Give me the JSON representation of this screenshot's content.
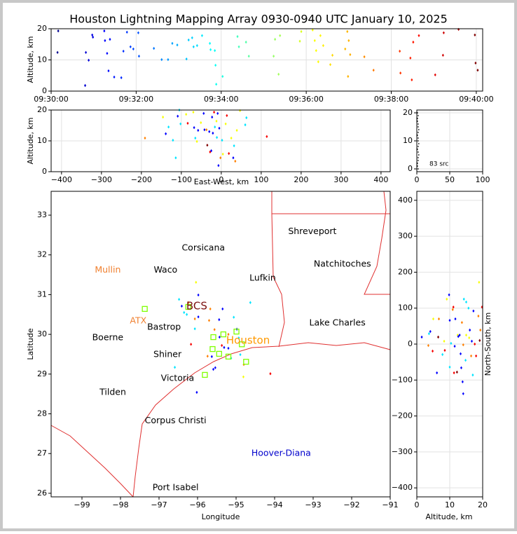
{
  "chart_data": [
    {
      "type": "scatter",
      "title": "Houston Lightning Mapping Array 0930-0940 UTC January 10, 2025",
      "ylabel": "Altitude, km",
      "xlim": [
        "09:30:00",
        "09:40:09"
      ],
      "xticks": [
        "09:30:00",
        "09:32:00",
        "09:34:00",
        "09:36:00",
        "09:38:00",
        "09:40:00"
      ],
      "ylim": [
        0,
        20
      ],
      "yticks": [
        0,
        10,
        20
      ],
      "grid": true,
      "colormap": "jet",
      "clim": [
        "09:30:00",
        "09:40:00"
      ],
      "x": [
        "09:30:10",
        "09:30:09",
        "09:30:48",
        "09:30:49",
        "09:30:53",
        "09:30:58",
        "09:30:59",
        "09:31:15",
        "09:31:16",
        "09:31:19",
        "09:31:21",
        "09:31:23",
        "09:31:29",
        "09:31:39",
        "09:31:42",
        "09:31:47",
        "09:31:52",
        "09:31:56",
        "09:32:03",
        "09:32:04",
        "09:32:25",
        "09:32:36",
        "09:32:45",
        "09:32:51",
        "09:32:58",
        "09:33:11",
        "09:33:14",
        "09:33:19",
        "09:33:21",
        "09:33:26",
        "09:33:33",
        "09:33:44",
        "09:33:45",
        "09:33:51",
        "09:33:52",
        "09:33:53",
        "09:34:02",
        "09:34:23",
        "09:34:25",
        "09:34:35",
        "09:34:39",
        "09:35:14",
        "09:35:16",
        "09:35:21",
        "09:35:23",
        "09:35:51",
        "09:35:53",
        "09:36:09",
        "09:36:12",
        "09:36:14",
        "09:36:17",
        "09:36:20",
        "09:36:24",
        "09:36:34",
        "09:36:37",
        "09:36:55",
        "09:36:58",
        "09:36:59",
        "09:37:00",
        "09:37:02",
        "09:37:22",
        "09:37:35",
        "09:38:12",
        "09:38:13",
        "09:38:27",
        "09:38:29",
        "09:38:31",
        "09:38:39",
        "09:39:02",
        "09:39:13",
        "09:39:14",
        "09:39:35",
        "09:39:58",
        "09:39:59",
        "09:40:02"
      ],
      "y": [
        19.3,
        12.4,
        1.8,
        12.4,
        9.9,
        18,
        17.3,
        19.3,
        16.2,
        12.1,
        6.5,
        16.6,
        4.5,
        4.3,
        12.8,
        18.9,
        14.2,
        13.5,
        18.7,
        11.2,
        13.7,
        10.1,
        10.1,
        15.3,
        14.8,
        10.3,
        16.4,
        17.1,
        14.2,
        14.6,
        17.8,
        15.3,
        13.3,
        13.0,
        8.3,
        2.2,
        4.7,
        17.5,
        14.2,
        15.7,
        11.2,
        11.2,
        16.6,
        5.4,
        17.8,
        16.0,
        19.1,
        19.6,
        16.2,
        13.0,
        9.4,
        17.8,
        14.6,
        8.5,
        11.5,
        13.5,
        19.1,
        4.7,
        16.2,
        11.7,
        11.0,
        6.7,
        12.8,
        5.8,
        10.6,
        3.6,
        15.7,
        17.8,
        5.2,
        11.5,
        18.7,
        19.8,
        18.0,
        9.0,
        6.7
      ]
    },
    {
      "type": "scatter",
      "xlabel": "East-West, km",
      "ylabel": "Altitude, km",
      "xlim": [
        -426,
        423
      ],
      "xticks": [
        {
          "value": -400,
          "label": "−400"
        },
        {
          "value": -300,
          "label": "−300"
        },
        {
          "value": -200,
          "label": "−200"
        },
        {
          "value": -100,
          "label": "−100"
        },
        0,
        100,
        200,
        300,
        400
      ],
      "ylim": [
        0,
        20
      ],
      "yticks": [
        0,
        10,
        20
      ],
      "grid": true,
      "colormap": "jet",
      "clim": [
        "09:30:00",
        "09:40:00"
      ],
      "x": [
        -191,
        -146,
        -139,
        -132,
        -121,
        -114,
        -109,
        -105,
        -102,
        -88,
        -84,
        -70,
        -68,
        -65,
        -61,
        -58,
        -51,
        -44,
        -42,
        -37,
        -35,
        -30,
        -28,
        -25,
        -23,
        -21,
        -18,
        -16,
        -12,
        -11,
        -9,
        -7,
        -5,
        -2,
        2,
        4,
        11,
        14,
        19,
        25,
        30,
        32,
        35,
        39,
        47,
        60,
        63,
        114
      ],
      "y": [
        10.9,
        17.7,
        12.3,
        14.5,
        10.2,
        4.5,
        18,
        20,
        15.5,
        18.6,
        15.7,
        19.3,
        14.3,
        10.9,
        9.8,
        13.4,
        15.9,
        18.9,
        13.6,
        13.6,
        8.6,
        13,
        6.4,
        6.8,
        17.7,
        12.5,
        19.3,
        14.5,
        16.4,
        11.1,
        18.9,
        2,
        14.1,
        4.5,
        10.2,
        5.7,
        15.5,
        18.2,
        5.9,
        10.9,
        4.5,
        8.4,
        3.4,
        13.4,
        19.8,
        15.2,
        17.5,
        11.4
      ],
      "c": [
        "09:37:30",
        "09:36:10",
        "09:31:15",
        "09:33:30",
        "09:33:30",
        "09:33:30",
        "09:31:15",
        "09:33:30",
        "09:33:30",
        "09:36:10",
        "09:38:50",
        "09:36:10",
        "09:31:15",
        "09:33:30",
        "09:36:10",
        "09:31:15",
        "09:36:10",
        "09:31:15",
        "09:31:15",
        "09:37:30",
        "09:40:00",
        "09:31:15",
        "09:38:50",
        "09:31:15",
        "09:31:15",
        "09:31:15",
        "09:38:50",
        "09:33:30",
        "09:36:10",
        "09:33:30",
        "09:31:15",
        "09:31:15",
        "09:31:15",
        "09:37:30",
        "09:33:30",
        "09:36:10",
        "09:36:10",
        "09:38:50",
        "09:38:50",
        "09:36:10",
        "09:31:15",
        "09:33:30",
        "09:37:30",
        "09:36:10",
        "09:36:10",
        "09:33:30",
        "09:33:30",
        "09:38:50"
      ]
    },
    {
      "type": "scatter",
      "annotation": "83 src",
      "xlim": [
        0,
        100
      ],
      "xticks": [
        0,
        50,
        100
      ],
      "ylim": [
        -1,
        21
      ],
      "yticks": [
        0,
        10,
        20
      ],
      "grid": true,
      "color": "#000000",
      "x": [
        2,
        1,
        1,
        2,
        2,
        3,
        2,
        1,
        2,
        3,
        2,
        2,
        1,
        2,
        3,
        2,
        2,
        1,
        1,
        2,
        1
      ],
      "y": [
        0,
        1,
        2,
        3,
        4,
        5,
        6,
        7,
        8,
        9,
        10,
        11,
        12,
        13,
        14,
        15,
        16,
        17,
        18,
        19,
        20
      ]
    },
    {
      "type": "map",
      "xlabel": "Longitude",
      "ylabel": "Latitude",
      "xlim": [
        -99.8,
        -91.0
      ],
      "xticks": [
        {
          "value": -99,
          "label": "−99"
        },
        {
          "value": -98,
          "label": "−98"
        },
        {
          "value": -97,
          "label": "−97"
        },
        {
          "value": -96,
          "label": "−96"
        },
        {
          "value": -95,
          "label": "−95"
        },
        {
          "value": -94,
          "label": "−94"
        },
        {
          "value": -93,
          "label": "−93"
        },
        {
          "value": -92,
          "label": "−92"
        },
        {
          "value": -91,
          "label": "−91"
        }
      ],
      "ylim": [
        25.91,
        33.6
      ],
      "yticks": [
        26,
        27,
        28,
        29,
        30,
        31,
        32,
        33
      ],
      "grid": false,
      "colormap": "jet",
      "clim": [
        "09:30:00",
        "09:40:00"
      ],
      "x": [
        -96.04,
        -95.98,
        -96.48,
        -96.24,
        -96.41,
        -96.35,
        -96.28,
        -96.07,
        -95.98,
        -95.7,
        -95.67,
        -95.35,
        -95.56,
        -95.44,
        -95.43,
        -95.37,
        -95.31,
        -95.2,
        -95.2,
        -95.06,
        -94.98,
        -94.93,
        -94.89,
        -94.81,
        -94.8,
        -94.63,
        -94.11,
        -95.63,
        -95.59,
        -95.54,
        -95.74,
        -96.17,
        -96.59,
        -96.02,
        -96.07,
        -95.13
      ],
      "y": [
        31.31,
        30.99,
        30.88,
        30.8,
        30.71,
        30.55,
        30.5,
        30.14,
        30.44,
        30.35,
        30.64,
        30.64,
        30.12,
        30.37,
        29.93,
        29.72,
        29.67,
        30.0,
        29.65,
        30.43,
        30.13,
        29.91,
        29.49,
        28.93,
        29.24,
        30.8,
        29.01,
        29.44,
        29.12,
        29.16,
        29.45,
        29.75,
        29.17,
        28.54,
        30.39,
        29.4
      ],
      "c": [
        "09:36:10",
        "09:31:15",
        "09:33:30",
        "09:37:30",
        "09:31:15",
        "09:33:30",
        "09:33:30",
        "09:33:30",
        "09:31:15",
        "09:37:30",
        "09:37:30",
        "09:31:15",
        "09:37:30",
        "09:31:15",
        "09:31:15",
        "09:38:50",
        "09:31:15",
        "09:37:30",
        "09:31:15",
        "09:33:30",
        "09:31:15",
        "09:33:30",
        "09:33:30",
        "09:36:10",
        "09:37:30",
        "09:33:30",
        "09:38:50",
        "09:31:15",
        "09:31:15",
        "09:31:15",
        "09:37:30",
        "09:38:50",
        "09:33:30",
        "09:31:15",
        "09:37:30",
        "09:33:30"
      ],
      "stations": {
        "color": "#7fff00",
        "x": [
          -97.37,
          -96.24,
          -95.33,
          -95.59,
          -94.99,
          -95.61,
          -95.44,
          -95.2,
          -95.81,
          -94.74,
          -94.85
        ],
        "y": [
          30.64,
          30.69,
          30.0,
          29.93,
          30.07,
          29.63,
          29.51,
          29.44,
          28.98,
          29.31,
          29.75
        ]
      },
      "cities": [
        {
          "name": "Shreveport",
          "lon": -93.02,
          "lat": 32.59,
          "color": "#000000"
        },
        {
          "name": "Corsicana",
          "lon": -95.85,
          "lat": 32.17,
          "color": "#000000"
        },
        {
          "name": "Mullin",
          "lon": -98.33,
          "lat": 31.62,
          "color": "#f08030"
        },
        {
          "name": "Waco",
          "lon": -96.83,
          "lat": 31.62,
          "color": "#000000"
        },
        {
          "name": "Lufkin",
          "lon": -94.31,
          "lat": 31.41,
          "color": "#000000"
        },
        {
          "name": "Natchitoches",
          "lon": -92.24,
          "lat": 31.77,
          "color": "#000000"
        },
        {
          "name": "BCS",
          "lon": -96.02,
          "lat": 30.71,
          "color": "#7b1010"
        },
        {
          "name": "ATX",
          "lon": -97.54,
          "lat": 30.34,
          "color": "#f08030"
        },
        {
          "name": "Bastrop",
          "lon": -96.87,
          "lat": 30.18,
          "color": "#000000"
        },
        {
          "name": "Lake Charles",
          "lon": -92.37,
          "lat": 30.28,
          "color": "#000000"
        },
        {
          "name": "Boerne",
          "lon": -98.33,
          "lat": 29.91,
          "color": "#000000"
        },
        {
          "name": "Houston",
          "lon": -94.69,
          "lat": 29.84,
          "color": "#ff9900"
        },
        {
          "name": "Shiner",
          "lon": -96.78,
          "lat": 29.49,
          "color": "#000000"
        },
        {
          "name": "Victoria",
          "lon": -96.52,
          "lat": 28.89,
          "color": "#000000"
        },
        {
          "name": "Tilden",
          "lon": -98.2,
          "lat": 28.54,
          "color": "#000000"
        },
        {
          "name": "Corpus Christi",
          "lon": -96.57,
          "lat": 27.82,
          "color": "#000000"
        },
        {
          "name": "Hoover-Diana",
          "lon": -93.83,
          "lat": 27.0,
          "color": "#0000cc"
        },
        {
          "name": "Port Isabel",
          "lon": -96.57,
          "lat": 26.14,
          "color": "#000000"
        }
      ]
    },
    {
      "type": "scatter",
      "xlabel": "Altitude, km",
      "ylabel": "North-South, km",
      "xlim": [
        0,
        20
      ],
      "xticks": [
        0,
        10,
        20
      ],
      "ylim": [
        -425,
        425
      ],
      "yticks": [
        {
          "value": -400,
          "label": "−400"
        },
        {
          "value": -300,
          "label": "−300"
        },
        {
          "value": -200,
          "label": "−200"
        },
        {
          "value": -100,
          "label": "−100"
        },
        0,
        100,
        200,
        300,
        400
      ],
      "grid": true,
      "colormap": "jet",
      "clim": [
        "09:30:00",
        "09:40:00"
      ],
      "x": [
        1.5,
        3.5,
        3.7,
        4.1,
        4.8,
        5,
        6.1,
        6.5,
        6.7,
        7.8,
        8.3,
        8.5,
        9.1,
        9.8,
        10,
        10,
        10.4,
        10.9,
        11.1,
        11.3,
        11.5,
        11.7,
        12.2,
        12.4,
        12.6,
        13,
        13.3,
        13.5,
        13.7,
        13.9,
        14.1,
        14.1,
        14.3,
        14.8,
        15,
        15,
        15.7,
        15.9,
        16.1,
        16.5,
        16.7,
        17,
        17.2,
        17.6,
        18,
        18.7,
        18.9,
        19.1,
        19.3,
        19.8
      ],
      "y": [
        19.5,
        -4,
        29,
        35,
        -19.5,
        70,
        -80,
        19.5,
        70,
        -29,
        8,
        -17.5,
        125,
        137,
        66,
        -64,
        2,
        96,
        103,
        -80,
        -6,
        70,
        -78,
        25,
        21,
        25,
        -27,
        -66,
        60,
        -105,
        -138,
        -2,
        125,
        -45,
        117,
        25,
        100,
        17.5,
        39,
        -33,
        8,
        -86,
        92,
        0,
        -33,
        78,
        172,
        10,
        39,
        103
      ],
      "c": [
        "09:31:15",
        "09:37:30",
        "09:33:30",
        "09:31:15",
        "09:38:50",
        "09:36:10",
        "09:31:15",
        "09:40:00",
        "09:37:30",
        "09:33:30",
        "09:36:10",
        "09:38:50",
        "09:36:10",
        "09:31:15",
        "09:31:15",
        "09:33:30",
        "09:33:30",
        "09:37:30",
        "09:38:50",
        "09:38:50",
        "09:31:15",
        "09:31:15",
        "09:40:00",
        "09:36:10",
        "09:31:15",
        "09:31:15",
        "09:31:15",
        "09:31:15",
        "09:37:30",
        "09:31:15",
        "09:31:15",
        "09:37:30",
        "09:33:30",
        "09:33:30",
        "09:33:30",
        "09:36:10",
        "09:33:30",
        "09:36:10",
        "09:31:15",
        "09:37:30",
        "09:31:15",
        "09:33:30",
        "09:31:15",
        "09:38:50",
        "09:38:50",
        "09:37:30",
        "09:36:10",
        "09:40:00",
        "09:37:30",
        "09:38:50"
      ]
    }
  ]
}
